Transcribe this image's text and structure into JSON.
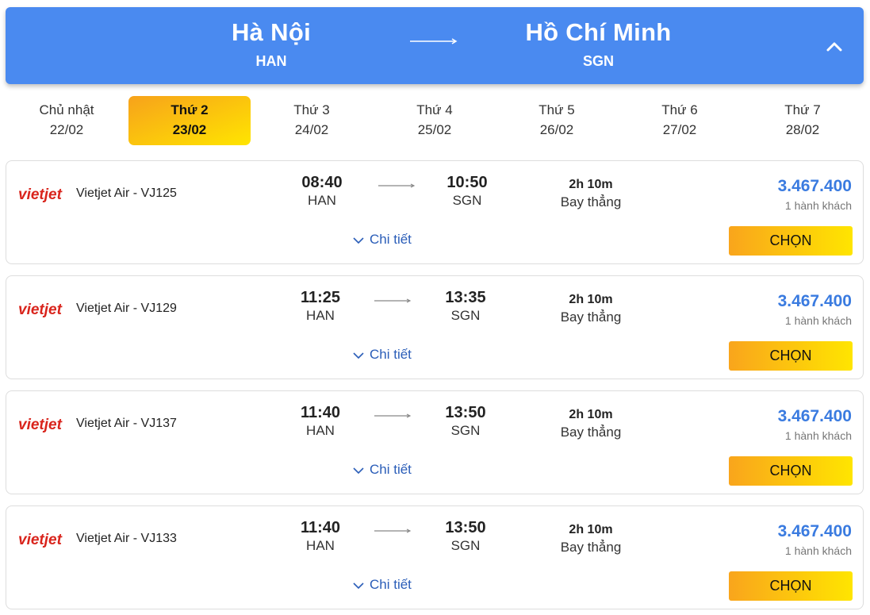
{
  "route": {
    "from_city": "Hà Nội",
    "from_code": "HAN",
    "to_city": "Hồ Chí Minh",
    "to_code": "SGN"
  },
  "dates": [
    {
      "dow": "Chủ nhật",
      "date": "22/02",
      "active": false
    },
    {
      "dow": "Thứ 2",
      "date": "23/02",
      "active": true
    },
    {
      "dow": "Thứ 3",
      "date": "24/02",
      "active": false
    },
    {
      "dow": "Thứ 4",
      "date": "25/02",
      "active": false
    },
    {
      "dow": "Thứ 5",
      "date": "26/02",
      "active": false
    },
    {
      "dow": "Thứ 6",
      "date": "27/02",
      "active": false
    },
    {
      "dow": "Thứ 7",
      "date": "28/02",
      "active": false
    }
  ],
  "flights": [
    {
      "airline": "Vietjet Air - VJ125",
      "dep_time": "08:40",
      "dep_code": "HAN",
      "arr_time": "10:50",
      "arr_code": "SGN",
      "duration": "2h 10m",
      "stops": "Bay thẳng",
      "price": "3.467.400",
      "pax": "1 hành khách",
      "detail_label": "Chi tiết",
      "select_label": "CHỌN"
    },
    {
      "airline": "Vietjet Air - VJ129",
      "dep_time": "11:25",
      "dep_code": "HAN",
      "arr_time": "13:35",
      "arr_code": "SGN",
      "duration": "2h 10m",
      "stops": "Bay thẳng",
      "price": "3.467.400",
      "pax": "1 hành khách",
      "detail_label": "Chi tiết",
      "select_label": "CHỌN"
    },
    {
      "airline": "Vietjet Air - VJ137",
      "dep_time": "11:40",
      "dep_code": "HAN",
      "arr_time": "13:50",
      "arr_code": "SGN",
      "duration": "2h 10m",
      "stops": "Bay thẳng",
      "price": "3.467.400",
      "pax": "1 hành khách",
      "detail_label": "Chi tiết",
      "select_label": "CHỌN"
    },
    {
      "airline": "Vietjet Air - VJ133",
      "dep_time": "11:40",
      "dep_code": "HAN",
      "arr_time": "13:50",
      "arr_code": "SGN",
      "duration": "2h 10m",
      "stops": "Bay thẳng",
      "price": "3.467.400",
      "pax": "1 hành khách",
      "detail_label": "Chi tiết",
      "select_label": "CHỌN"
    }
  ],
  "logo_text": "vietjet",
  "icons": {
    "route_arrow": "long-arrow-right-icon",
    "collapse": "chevron-up-icon",
    "flight_arrow": "long-arrow-right-icon",
    "detail": "chevron-down-icon"
  },
  "colors": {
    "header_bg": "#4a8af0",
    "active_tab": "#f7a21b",
    "price": "#3a7be0",
    "logo_red": "#d9241c",
    "link": "#2a5db8"
  }
}
